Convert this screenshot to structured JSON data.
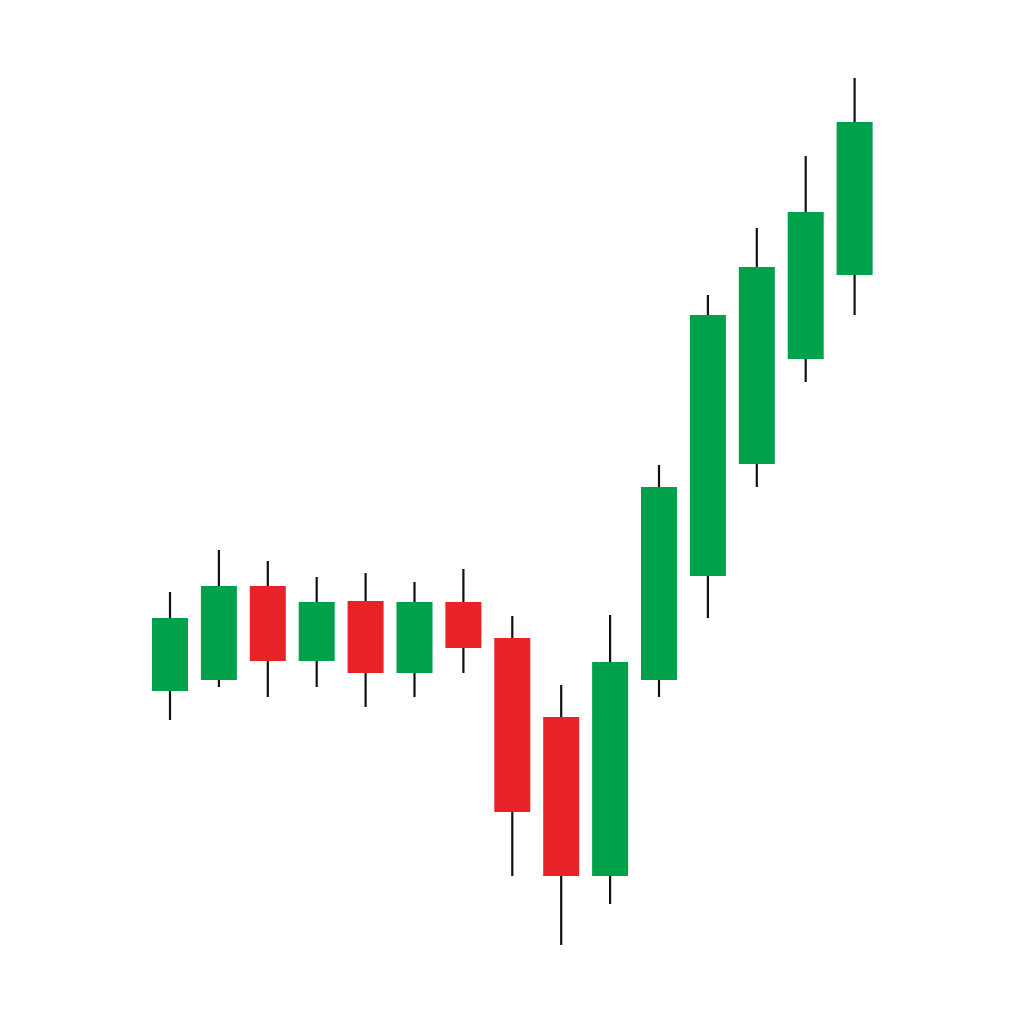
{
  "chart_data": {
    "type": "candlestick",
    "title": "",
    "xlabel": "",
    "ylabel": "",
    "ylim": [
      0,
      100
    ],
    "grid": false,
    "axes_visible": false,
    "colors": {
      "up": "#00a14b",
      "down": "#e92228",
      "wick": "#111111"
    },
    "candles": [
      {
        "open": 30.9,
        "high": 40.8,
        "low": 28.0,
        "close": 38.2
      },
      {
        "open": 32.0,
        "high": 45.0,
        "low": 31.3,
        "close": 41.4
      },
      {
        "open": 41.4,
        "high": 43.9,
        "low": 30.3,
        "close": 33.9
      },
      {
        "open": 33.9,
        "high": 42.3,
        "low": 31.3,
        "close": 39.8
      },
      {
        "open": 39.9,
        "high": 42.7,
        "low": 29.3,
        "close": 32.7
      },
      {
        "open": 32.7,
        "high": 41.8,
        "low": 30.3,
        "close": 39.8
      },
      {
        "open": 39.8,
        "high": 43.1,
        "low": 32.7,
        "close": 35.2
      },
      {
        "open": 36.2,
        "high": 38.4,
        "low": 12.4,
        "close": 18.8
      },
      {
        "open": 28.3,
        "high": 31.5,
        "low": 5.5,
        "close": 12.4
      },
      {
        "open": 12.4,
        "high": 38.5,
        "low": 9.6,
        "close": 33.8
      },
      {
        "open": 32.0,
        "high": 53.5,
        "low": 30.3,
        "close": 51.3
      },
      {
        "open": 42.4,
        "high": 70.5,
        "low": 38.2,
        "close": 68.5
      },
      {
        "open": 53.6,
        "high": 77.2,
        "low": 51.3,
        "close": 73.3
      },
      {
        "open": 64.1,
        "high": 84.4,
        "low": 61.8,
        "close": 78.8
      },
      {
        "open": 72.5,
        "high": 92.2,
        "low": 68.5,
        "close": 87.8
      }
    ]
  }
}
